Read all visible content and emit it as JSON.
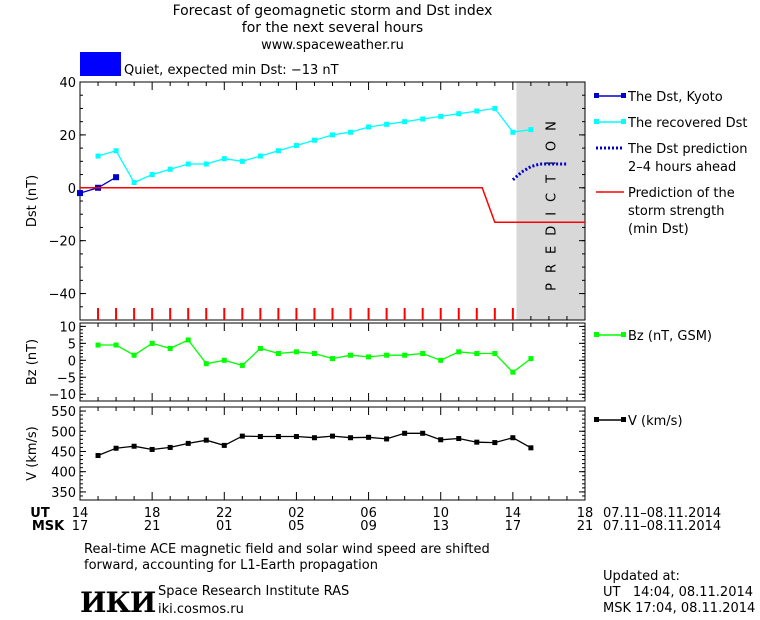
{
  "header": {
    "title_line1": "Forecast of geomagnetic storm and Dst index",
    "title_line2": "for the next several hours",
    "url": "www.spaceweather.ru",
    "status": "Quiet, expected min Dst: −13 nT",
    "status_color": "#0000ff"
  },
  "prediction_label": "PREDICTION",
  "time_axis": {
    "ut_label": "UT",
    "msk_label": "MSK",
    "ut_ticks": [
      "14",
      "18",
      "22",
      "02",
      "06",
      "10",
      "14",
      "18"
    ],
    "msk_ticks": [
      "17",
      "21",
      "01",
      "05",
      "09",
      "13",
      "17",
      "21"
    ],
    "date_range_ut": "07.11–08.11.2014",
    "date_range_msk": "07.11–08.11.2014"
  },
  "chart_data": [
    {
      "type": "line",
      "ylabel": "Dst (nT)",
      "ylim": [
        -50,
        40
      ],
      "yticks": [
        40,
        20,
        0,
        -20,
        -40
      ],
      "x_unit": "hours from 14 UT 07.11.2014",
      "xlim": [
        0,
        28
      ],
      "prediction_region": [
        24.2,
        28
      ],
      "series": [
        {
          "name": "The Dst, Kyoto",
          "color": "#0000cc",
          "style": "line-squares-dark",
          "x": [
            0,
            1,
            2
          ],
          "y": [
            -2,
            0,
            4
          ]
        },
        {
          "name": "The recovered Dst",
          "color": "#00ffff",
          "style": "line-squares",
          "x": [
            1,
            2,
            3,
            4,
            5,
            6,
            7,
            8,
            9,
            10,
            11,
            12,
            13,
            14,
            15,
            16,
            17,
            18,
            19,
            20,
            21,
            22,
            23,
            24,
            25
          ],
          "y": [
            12,
            14,
            2,
            5,
            7,
            9,
            9,
            11,
            10,
            12,
            14,
            16,
            18,
            20,
            21,
            23,
            24,
            25,
            26,
            27,
            28,
            29,
            30,
            21,
            22
          ]
        },
        {
          "name": "The Dst prediction 2–4 hours ahead",
          "color": "#0000cc",
          "style": "dotted",
          "x": [
            24,
            24.5,
            25,
            25.5,
            26,
            26.5,
            27
          ],
          "y": [
            3,
            6,
            8,
            9,
            9,
            9,
            9
          ]
        },
        {
          "name": "Prediction of the storm strength (min Dst)",
          "color": "#ff0000",
          "style": "line",
          "x": [
            0,
            22.3,
            23,
            28
          ],
          "y": [
            0,
            0,
            -13,
            -13
          ]
        }
      ],
      "legend": [
        {
          "lines": [
            "The Dst, Kyoto"
          ]
        },
        {
          "lines": [
            "The recovered Dst"
          ]
        },
        {
          "lines": [
            "The Dst prediction",
            "2–4 hours ahead"
          ]
        },
        {
          "lines": [
            "Prediction of the",
            "storm strength",
            "(min Dst)"
          ]
        }
      ],
      "red_ticks_x": [
        1,
        2,
        3,
        4,
        5,
        6,
        7,
        8,
        9,
        10,
        11,
        12,
        13,
        14,
        15,
        16,
        17,
        18,
        19,
        20,
        21,
        22,
        23,
        24
      ]
    },
    {
      "type": "line",
      "ylabel": "Bz (nT)",
      "ylim": [
        -12,
        11
      ],
      "yticks": [
        10,
        5,
        0,
        -5,
        -10
      ],
      "xlim": [
        0,
        28
      ],
      "series": [
        {
          "name": "Bz (nT, GSM)",
          "color": "#00ff00",
          "style": "line-squares",
          "x": [
            1,
            2,
            3,
            4,
            5,
            6,
            7,
            8,
            9,
            10,
            11,
            12,
            13,
            14,
            15,
            16,
            17,
            18,
            19,
            20,
            21,
            22,
            23,
            24,
            25
          ],
          "y": [
            4.5,
            4.5,
            1.5,
            5,
            3.5,
            6,
            -1,
            0,
            -1.5,
            3.5,
            2,
            2.5,
            2,
            0.5,
            1.5,
            1,
            1.5,
            1.5,
            2,
            0,
            2.5,
            2,
            2,
            -3.5,
            0.5
          ]
        }
      ],
      "legend": [
        {
          "lines": [
            "Bz (nT, GSM)"
          ]
        }
      ]
    },
    {
      "type": "line",
      "ylabel": "V (km/s)",
      "ylim": [
        330,
        560
      ],
      "yticks": [
        550,
        500,
        450,
        400,
        350
      ],
      "xlim": [
        0,
        28
      ],
      "series": [
        {
          "name": "V (km/s)",
          "color": "#000000",
          "style": "line-squares",
          "x": [
            1,
            2,
            3,
            4,
            5,
            6,
            7,
            8,
            9,
            10,
            11,
            12,
            13,
            14,
            15,
            16,
            17,
            18,
            19,
            20,
            21,
            22,
            23,
            24,
            25
          ],
          "y": [
            440,
            458,
            463,
            455,
            460,
            470,
            478,
            465,
            488,
            487,
            487,
            487,
            484,
            488,
            484,
            485,
            481,
            495,
            495,
            479,
            482,
            473,
            472,
            484,
            459
          ]
        }
      ],
      "legend": [
        {
          "lines": [
            "V (km/s)"
          ]
        }
      ]
    }
  ],
  "footer": {
    "note_line1": "Real-time ACE magnetic field and solar wind speed are shifted",
    "note_line2": "forward, accounting for L1-Earth propagation",
    "logo_text": "ИКИ",
    "institute": "Space Research Institute RAS",
    "site": "iki.cosmos.ru",
    "updated_label": "Updated at:",
    "updated_ut": "UT   14:04, 08.11.2014",
    "updated_msk": "MSK 17:04, 08.11.2014"
  }
}
